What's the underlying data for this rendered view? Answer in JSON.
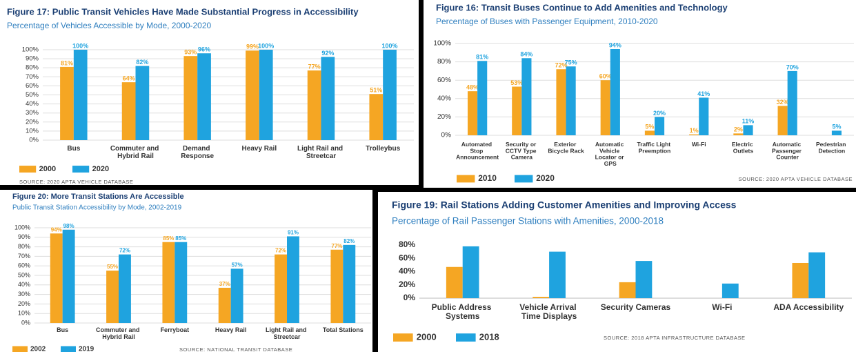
{
  "chart_data": [
    {
      "type": "bar",
      "title": "Figure 17:  Public Transit Vehicles Have Made Substantial Progress in Accessibility",
      "subtitle": "Percentage of Vehicles Accessible by Mode, 2000-2020",
      "categories": [
        "Bus",
        "Commuter and Hybrid Rail",
        "Demand Response",
        "Heavy Rail",
        "Light Rail and Streetcar",
        "Trolleybus"
      ],
      "series": [
        {
          "name": "2000",
          "color": "#f5a623",
          "values": [
            81,
            64,
            93,
            99,
            77,
            51
          ],
          "value_labels": [
            "81%",
            "64%",
            "93%",
            "99%",
            "77%",
            "51%"
          ]
        },
        {
          "name": "2020",
          "color": "#1fa3df",
          "values": [
            100,
            82,
            96,
            100,
            92,
            100
          ],
          "value_labels": [
            "100%",
            "82%",
            "96%",
            "100%",
            "92%",
            "100%"
          ]
        }
      ],
      "ylim": [
        0,
        100
      ],
      "yticks": [
        {
          "value": 0,
          "label": "0%"
        },
        {
          "value": 10,
          "label": "10%"
        },
        {
          "value": 20,
          "label": "20%"
        },
        {
          "value": 30,
          "label": "30%"
        },
        {
          "value": 40,
          "label": "40%"
        },
        {
          "value": 50,
          "label": "50%"
        },
        {
          "value": 60,
          "label": "60%"
        },
        {
          "value": 70,
          "label": "70%"
        },
        {
          "value": 80,
          "label": "80%"
        },
        {
          "value": 90,
          "label": "90%"
        },
        {
          "value": 100,
          "label": "100%"
        }
      ],
      "grid": true,
      "source": "SOURCE: 2020 APTA VEHICLE DATABASE"
    },
    {
      "type": "bar",
      "title": "Figure 16:  Transit Buses Continue to Add Amenities and Technology",
      "subtitle": "Percentage of Buses with Passenger Equipment, 2010-2020",
      "categories": [
        "Automated Stop Announcement",
        "Security or CCTV Type Camera",
        "Exterior Bicycle Rack",
        "Automatic Vehicle Locator or GPS",
        "Traffic Light Preemption",
        "Wi-Fi",
        "Electric Outlets",
        "Automatic Passenger Counter",
        "Pedestrian Detection"
      ],
      "series": [
        {
          "name": "2010",
          "color": "#f5a623",
          "values": [
            48,
            53,
            72,
            60,
            5,
            1,
            2,
            32,
            null
          ],
          "value_labels": [
            "48%",
            "53%",
            "72%",
            "60%",
            "5%",
            "1%",
            "2%",
            "32%",
            null
          ]
        },
        {
          "name": "2020",
          "color": "#1fa3df",
          "values": [
            81,
            84,
            75,
            94,
            20,
            41,
            11,
            70,
            5
          ],
          "value_labels": [
            "81%",
            "84%",
            "75%",
            "94%",
            "20%",
            "41%",
            "11%",
            "70%",
            "5%"
          ]
        }
      ],
      "ylim": [
        0,
        100
      ],
      "yticks": [
        {
          "value": 0,
          "label": "0%"
        },
        {
          "value": 20,
          "label": "20%"
        },
        {
          "value": 40,
          "label": "40%"
        },
        {
          "value": 60,
          "label": "60%"
        },
        {
          "value": 80,
          "label": "80%"
        },
        {
          "value": 100,
          "label": "100%"
        }
      ],
      "grid": true,
      "source": "SOURCE: 2020 APTA VEHICLE DATABASE"
    },
    {
      "type": "bar",
      "title": "Figure 20:  More Transit Stations Are Accessible",
      "subtitle": "Public Transit Station Accessibility by Mode, 2002-2019",
      "categories": [
        "Bus",
        "Commuter and Hybrid Rail",
        "Ferryboat",
        "Heavy Rail",
        "Light Rail and Streetcar",
        "Total Stations"
      ],
      "series": [
        {
          "name": "2002",
          "color": "#f5a623",
          "values": [
            94,
            55,
            85,
            37,
            72,
            77
          ],
          "value_labels": [
            "94%",
            "55%",
            "85%",
            "37%",
            "72%",
            "77%"
          ]
        },
        {
          "name": "2019",
          "color": "#1fa3df",
          "values": [
            98,
            72,
            85,
            57,
            91,
            82
          ],
          "value_labels": [
            "98%",
            "72%",
            "85%",
            "57%",
            "91%",
            "82%"
          ]
        }
      ],
      "ylim": [
        0,
        100
      ],
      "yticks": [
        {
          "value": 0,
          "label": "0%"
        },
        {
          "value": 10,
          "label": "10%"
        },
        {
          "value": 20,
          "label": "20%"
        },
        {
          "value": 30,
          "label": "30%"
        },
        {
          "value": 40,
          "label": "40%"
        },
        {
          "value": 50,
          "label": "50%"
        },
        {
          "value": 60,
          "label": "60%"
        },
        {
          "value": 70,
          "label": "70%"
        },
        {
          "value": 80,
          "label": "80%"
        },
        {
          "value": 90,
          "label": "90%"
        },
        {
          "value": 100,
          "label": "100%"
        }
      ],
      "grid": true,
      "source": "SOURCE: NATIONAL TRANSIT DATABASE"
    },
    {
      "type": "bar",
      "title": "Figure 19:  Rail Stations Adding Customer Amenities and Improving Access",
      "subtitle": "Percentage of Rail Passenger Stations with Amenities, 2000-2018",
      "categories": [
        "Public Address Systems",
        "Vehicle Arrival Time Displays",
        "Security Cameras",
        "Wi-Fi",
        "ADA Accessibility"
      ],
      "series": [
        {
          "name": "2000",
          "color": "#f5a623",
          "values": [
            47,
            2,
            24,
            null,
            53
          ]
        },
        {
          "name": "2018",
          "color": "#1fa3df",
          "values": [
            78,
            70,
            56,
            22,
            69
          ]
        }
      ],
      "ylim": [
        0,
        80
      ],
      "yticks": [
        {
          "value": 0,
          "label": "0%"
        },
        {
          "value": 20,
          "label": "20%"
        },
        {
          "value": 40,
          "label": "40%"
        },
        {
          "value": 60,
          "label": "60%"
        },
        {
          "value": 80,
          "label": "80%"
        }
      ],
      "grid": false,
      "source": "SOURCE: 2018 APTA INFRASTRUCTURE DATABASE"
    }
  ]
}
